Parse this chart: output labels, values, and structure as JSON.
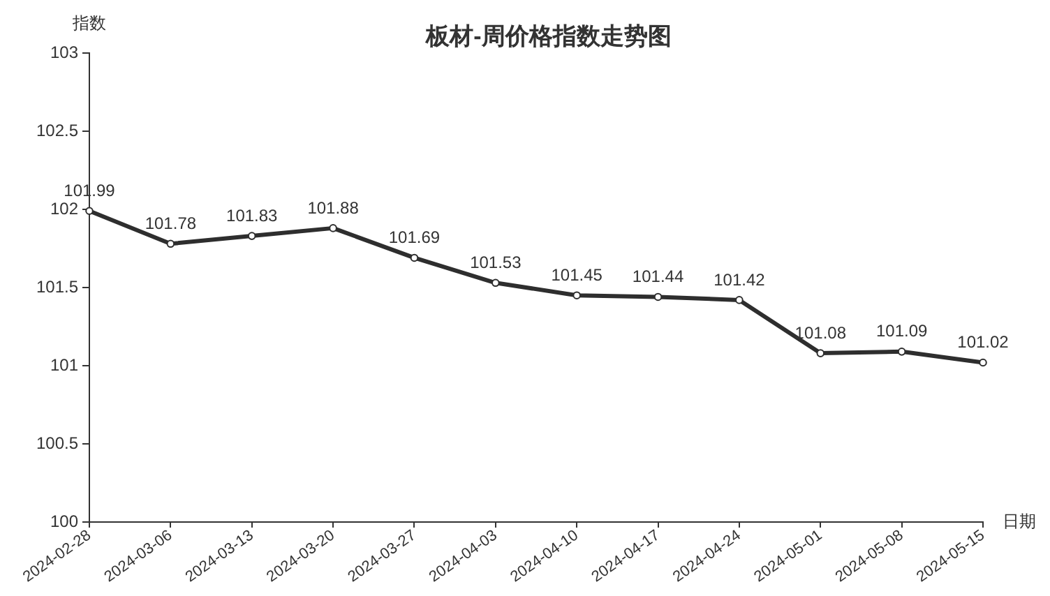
{
  "chart_data": {
    "type": "line",
    "title": "板材-周价格指数走势图",
    "xlabel": "日期",
    "ylabel": "指数",
    "categories": [
      "2024-02-28",
      "2024-03-06",
      "2024-03-13",
      "2024-03-20",
      "2024-03-27",
      "2024-04-03",
      "2024-04-10",
      "2024-04-17",
      "2024-04-24",
      "2024-05-01",
      "2024-05-08",
      "2024-05-15"
    ],
    "series": [
      {
        "color": "#2e2e2e",
        "values": [
          101.99,
          101.78,
          101.83,
          101.88,
          101.69,
          101.53,
          101.45,
          101.44,
          101.42,
          101.08,
          101.09,
          101.02
        ]
      }
    ],
    "ylim": [
      100,
      103
    ],
    "yticks": [
      100,
      100.5,
      101,
      101.5,
      102,
      102.5,
      103
    ],
    "data_labels": true,
    "marker": "circle",
    "line_style": "solid"
  }
}
